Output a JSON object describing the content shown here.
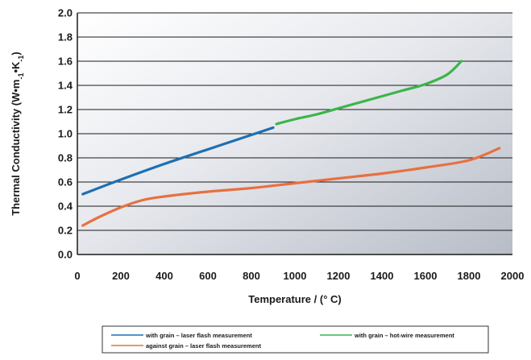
{
  "chart_data": {
    "type": "line",
    "xlabel": "Temperature / (° C)",
    "ylabel": {
      "prefix": "Thermal Conductivity (W•m",
      "sup1": "-1",
      "mid": "•K",
      "sup2": "-1",
      "suffix": ")"
    },
    "xlim": [
      0,
      2000
    ],
    "ylim": [
      0,
      2.0
    ],
    "x_ticks": [
      "0",
      "200",
      "400",
      "600",
      "800",
      "1000",
      "1200",
      "1400",
      "1600",
      "1800",
      "2000"
    ],
    "y_ticks": [
      "0.0",
      "0.2",
      "0.4",
      "0.6",
      "0.8",
      "1.0",
      "1.2",
      "1.4",
      "1.6",
      "1.8",
      "2.0"
    ],
    "grid": "horizontal",
    "legend_position": "bottom",
    "series": [
      {
        "name": "with grain – laser flash measurement",
        "color": "#1f6fb2",
        "x": [
          25,
          200,
          400,
          600,
          800,
          900
        ],
        "y": [
          0.5,
          0.62,
          0.75,
          0.87,
          0.99,
          1.05
        ]
      },
      {
        "name": "with grain – hot-wire measurement",
        "color": "#3cb44b",
        "x": [
          915,
          1000,
          1100,
          1200,
          1300,
          1400,
          1500,
          1600,
          1700,
          1765
        ],
        "y": [
          1.08,
          1.12,
          1.16,
          1.21,
          1.26,
          1.31,
          1.36,
          1.41,
          1.49,
          1.6
        ]
      },
      {
        "name": "against grain – laser flash measurement",
        "color": "#e8703f",
        "x": [
          25,
          100,
          200,
          300,
          400,
          600,
          800,
          1000,
          1200,
          1400,
          1600,
          1800,
          1940
        ],
        "y": [
          0.24,
          0.31,
          0.39,
          0.45,
          0.48,
          0.52,
          0.55,
          0.59,
          0.63,
          0.67,
          0.72,
          0.78,
          0.88
        ]
      }
    ]
  }
}
